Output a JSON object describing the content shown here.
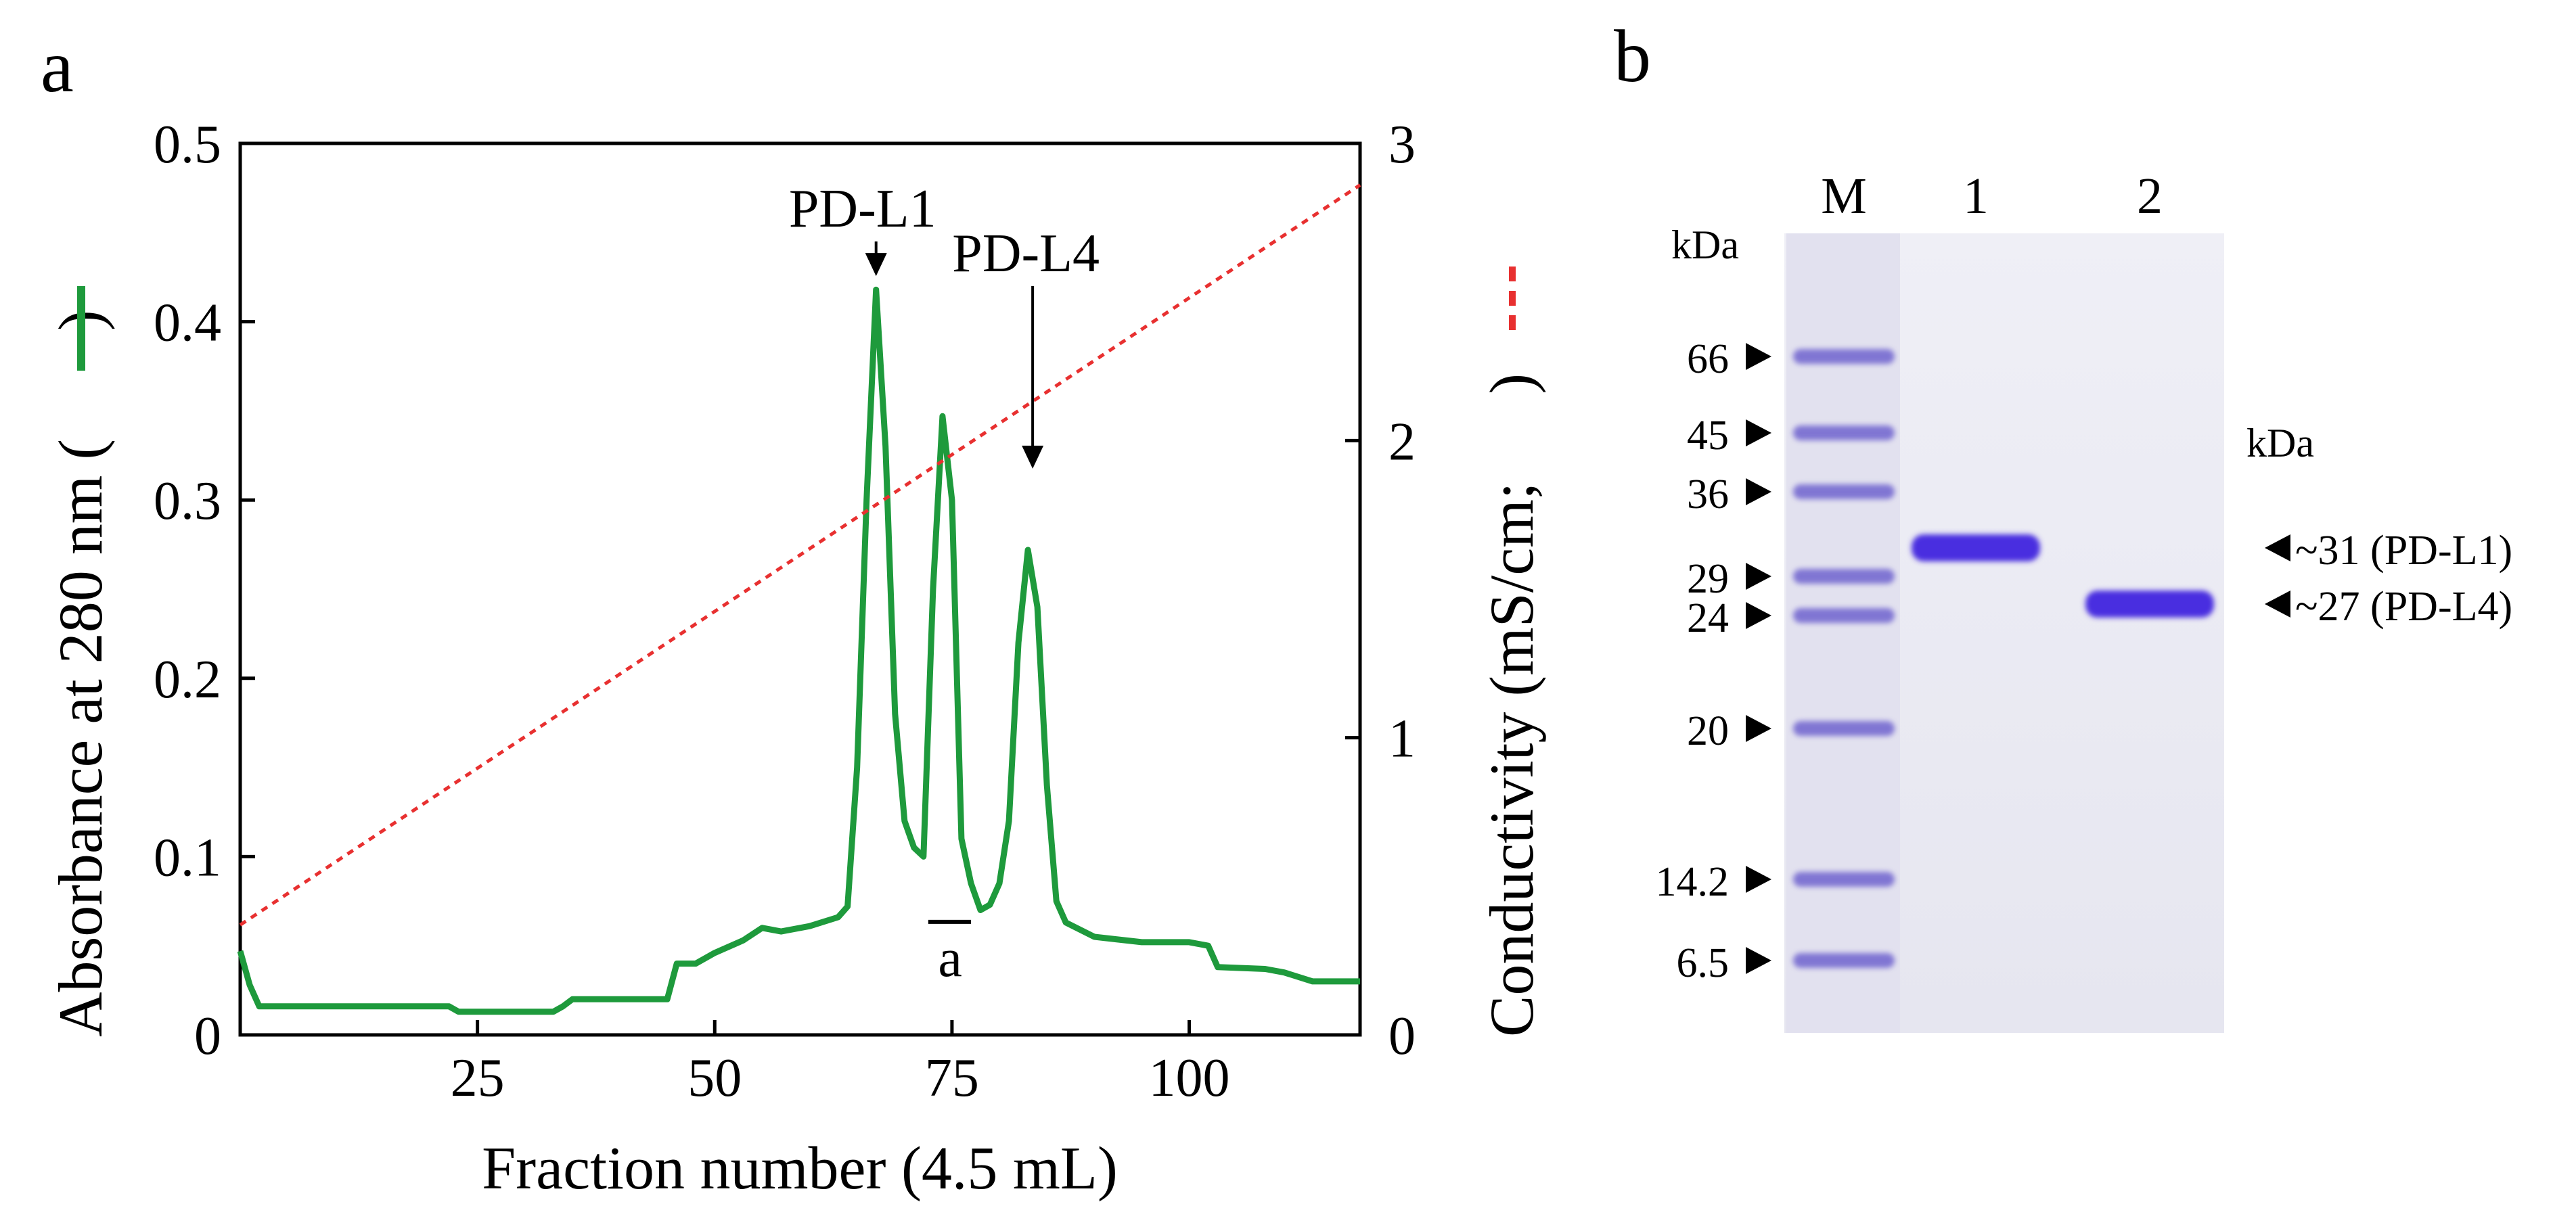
{
  "panels": {
    "a": {
      "label": "a"
    },
    "b": {
      "label": "b"
    }
  },
  "chart_data": [
    {
      "type": "line",
      "panel": "a",
      "title": "",
      "xlabel": "Fraction number (4.5 mL)",
      "ylabel": "Absorbance at 280 nm (",
      "ylabel_close": ")",
      "y2label": "Conductivity (mS/cm;",
      "y2label_close": ")",
      "xlim": [
        0,
        118
      ],
      "ylim": [
        0,
        0.5
      ],
      "y2lim": [
        0,
        3
      ],
      "xticks": [
        25,
        50,
        75,
        100
      ],
      "xtick_labels": [
        "25",
        "50",
        "75",
        "100"
      ],
      "yticks": [
        0,
        0.1,
        0.2,
        0.3,
        0.4,
        0.5
      ],
      "ytick_labels": [
        "0",
        "0.1",
        "0.2",
        "0.3",
        "0.4",
        "0.5"
      ],
      "y2ticks": [
        0,
        1,
        2,
        3
      ],
      "y2tick_labels": [
        "0",
        "1",
        "2",
        "3"
      ],
      "grid": false,
      "series": [
        {
          "name": "Absorbance at 280 nm",
          "axis": "left",
          "color": "#1e9a3c",
          "style": "solid",
          "x": [
            0,
            1,
            2,
            10,
            20,
            22,
            23,
            33,
            34,
            35,
            45,
            46,
            48,
            50,
            53,
            55,
            57,
            60,
            63,
            64,
            65,
            66,
            67,
            68,
            69,
            70,
            71,
            72,
            73,
            74,
            75,
            76,
            77,
            78,
            79,
            80,
            81,
            82,
            83,
            84,
            85,
            86,
            87,
            90,
            95,
            100,
            102,
            103,
            108,
            110,
            113,
            118
          ],
          "y": [
            0.047,
            0.028,
            0.016,
            0.016,
            0.016,
            0.016,
            0.013,
            0.013,
            0.016,
            0.02,
            0.02,
            0.04,
            0.04,
            0.046,
            0.053,
            0.06,
            0.058,
            0.061,
            0.066,
            0.072,
            0.15,
            0.3,
            0.418,
            0.33,
            0.18,
            0.12,
            0.105,
            0.1,
            0.25,
            0.347,
            0.3,
            0.11,
            0.085,
            0.07,
            0.073,
            0.085,
            0.12,
            0.22,
            0.272,
            0.24,
            0.14,
            0.075,
            0.063,
            0.055,
            0.052,
            0.052,
            0.05,
            0.038,
            0.037,
            0.035,
            0.03,
            0.03
          ]
        },
        {
          "name": "Conductivity",
          "axis": "right",
          "color": "#e83030",
          "style": "dashed",
          "x": [
            0,
            118
          ],
          "y": [
            0.37,
            2.86
          ]
        }
      ],
      "annotations": [
        {
          "text": "PD-L1",
          "x": 67,
          "y": 0.418,
          "arrow_from_y": 0.445
        },
        {
          "text": "PD-L4",
          "x": 83.5,
          "y": 0.31,
          "arrow_from_y": 0.42
        },
        {
          "text": "a",
          "x": 74.8,
          "y": 0.052,
          "bar_from_x": 72.5,
          "bar_to_x": 77
        }
      ]
    },
    {
      "type": "gel",
      "panel": "b",
      "kda_left": "kDa",
      "kda_right": "kDa",
      "lanes": [
        "M",
        "1",
        "2"
      ],
      "marker_bands_kDa": [
        "66",
        "45",
        "36",
        "29",
        "24",
        "20",
        "14.2",
        "6.5"
      ],
      "sample_bands": [
        {
          "lane": "1",
          "label": "~31 (PD-L1)",
          "kDa": 31
        },
        {
          "lane": "2",
          "label": "~27 (PD-L4)",
          "kDa": 27
        }
      ]
    }
  ]
}
